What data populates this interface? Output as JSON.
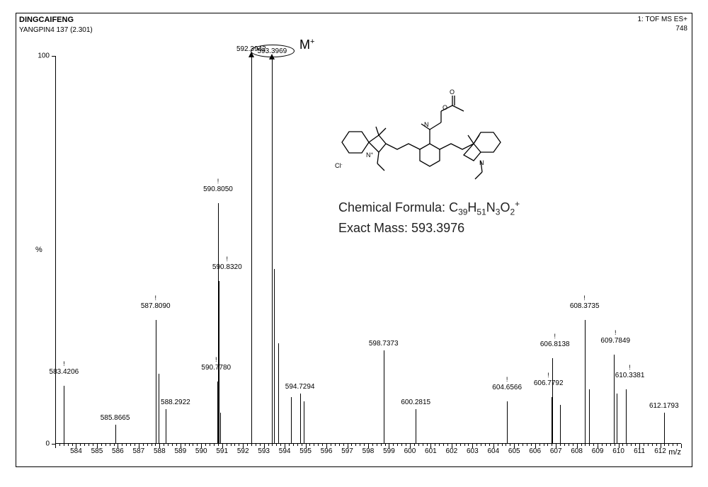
{
  "header": {
    "title": "DINGCAIFENG",
    "subtitle": "YANGPIN4 137 (2.301)",
    "top_right_1": "1: TOF MS ES+",
    "top_right_2": "748"
  },
  "axes": {
    "xlim": [
      583,
      613
    ],
    "ylim": [
      0,
      100
    ],
    "ylabel": "%",
    "xlabel": "m/z",
    "xtick_major_step": 1,
    "yticks": [
      0,
      100
    ],
    "tick_fontsize": 10,
    "label_fontsize": 11,
    "axis_color": "#000000"
  },
  "annotation": {
    "circled_peak_label": "593.3969",
    "symbol_text": "M",
    "symbol_sup": "+",
    "formula_label": "Chemical Formula:",
    "formula_value": "C39H51N3O2+",
    "mass_label": "Exact Mass:",
    "mass_value": "593.3976"
  },
  "peaks": [
    {
      "mz": 583.42,
      "intensity": 15,
      "label": "583.4206",
      "exclam": true
    },
    {
      "mz": 585.87,
      "intensity": 5,
      "label": "585.8665"
    },
    {
      "mz": 587.81,
      "intensity": 32,
      "label": "587.8090",
      "exclam": true
    },
    {
      "mz": 587.95,
      "intensity": 18
    },
    {
      "mz": 588.29,
      "intensity": 9,
      "label": "588.2922",
      "label_offset": 14
    },
    {
      "mz": 590.78,
      "intensity": 16,
      "label": "590.7780",
      "exclam": true,
      "label_offset": -2
    },
    {
      "mz": 590.805,
      "intensity": 62,
      "label": "590.8050",
      "exclam": true
    },
    {
      "mz": 590.832,
      "intensity": 42,
      "label": "590.8320",
      "exclam": true,
      "label_offset": 12
    },
    {
      "mz": 590.9,
      "intensity": 8
    },
    {
      "mz": 592.394,
      "intensity": 100,
      "label": "592.3942",
      "arrow": true
    },
    {
      "mz": 593.397,
      "intensity": 99.5,
      "label": "593.3969",
      "arrow": true,
      "circled": true
    },
    {
      "mz": 593.5,
      "intensity": 45
    },
    {
      "mz": 593.7,
      "intensity": 26
    },
    {
      "mz": 594.3,
      "intensity": 12
    },
    {
      "mz": 594.73,
      "intensity": 13,
      "label": "594.7294"
    },
    {
      "mz": 594.9,
      "intensity": 11
    },
    {
      "mz": 598.737,
      "intensity": 24,
      "label": "598.7373"
    },
    {
      "mz": 600.282,
      "intensity": 9,
      "label": "600.2815"
    },
    {
      "mz": 604.657,
      "intensity": 11,
      "label": "604.6566",
      "exclam": true
    },
    {
      "mz": 606.779,
      "intensity": 12,
      "label": "606.7792",
      "exclam": true,
      "label_offset": -4
    },
    {
      "mz": 606.814,
      "intensity": 22,
      "label": "606.8138",
      "exclam": true,
      "label_offset": 4
    },
    {
      "mz": 607.2,
      "intensity": 10
    },
    {
      "mz": 608.374,
      "intensity": 32,
      "label": "608.3735",
      "exclam": true
    },
    {
      "mz": 608.6,
      "intensity": 14
    },
    {
      "mz": 609.785,
      "intensity": 23,
      "label": "609.7849",
      "exclam": true,
      "label_offset": 2
    },
    {
      "mz": 609.9,
      "intensity": 13
    },
    {
      "mz": 610.338,
      "intensity": 14,
      "label": "610.3381",
      "exclam": true,
      "label_offset": 6
    },
    {
      "mz": 612.179,
      "intensity": 8,
      "label": "612.1793"
    }
  ],
  "style": {
    "background_color": "#ffffff",
    "peak_color": "#000000",
    "text_color": "#000000",
    "peak_width": 1,
    "label_fontsize": 10,
    "formula_fontsize": 18,
    "symbol_fontsize": 18
  }
}
